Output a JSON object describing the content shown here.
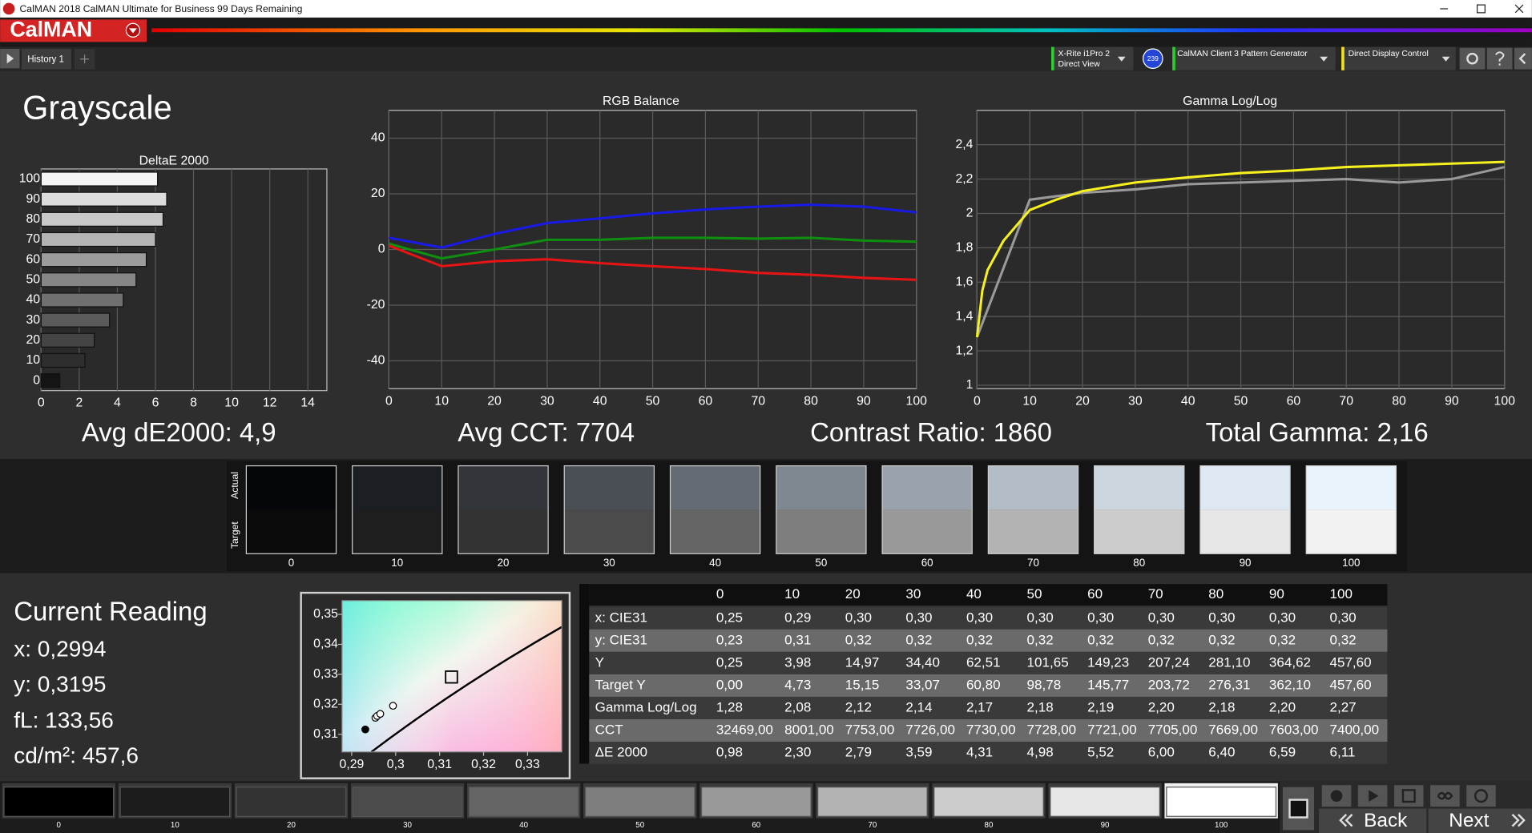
{
  "window": {
    "title": "CalMAN 2018 CalMAN Ultimate for Business 99 Days Remaining"
  },
  "toolbar": {
    "logo": "CalMAN",
    "tab": "History 1",
    "meter": [
      "X-Rite i1Pro 2",
      "Direct View"
    ],
    "meter_badge": "239",
    "source": "CalMAN Client 3 Pattern Generator",
    "display": "Direct Display Control"
  },
  "page_title": "Grayscale",
  "chart_data": [
    {
      "type": "bar",
      "orientation": "horizontal",
      "title": "DeltaE 2000",
      "categories": [
        "100",
        "90",
        "80",
        "70",
        "60",
        "50",
        "40",
        "30",
        "20",
        "10",
        "0"
      ],
      "values": [
        6.11,
        6.59,
        6.4,
        6.0,
        5.52,
        4.98,
        4.31,
        3.59,
        2.79,
        2.3,
        0.98
      ],
      "colors": [
        "#f4f4f4",
        "#dcdcdc",
        "#c8c8c8",
        "#b4b4b4",
        "#9c9c9c",
        "#868686",
        "#707070",
        "#5a5a5a",
        "#444444",
        "#2e2e2e",
        "#141414"
      ],
      "xlim": [
        0,
        15
      ],
      "xticks": [
        0,
        2,
        4,
        6,
        8,
        10,
        12,
        14
      ],
      "grid": true
    },
    {
      "type": "line",
      "title": "RGB Balance",
      "x": [
        0,
        10,
        20,
        30,
        40,
        50,
        60,
        70,
        80,
        90,
        100
      ],
      "series": [
        {
          "color": "#1a1ae6",
          "values": [
            4.2,
            0.7,
            5.6,
            9.5,
            11.2,
            13,
            14.4,
            15.4,
            16.1,
            15.4,
            13.3
          ]
        },
        {
          "color": "#0f8f0f",
          "values": [
            2.1,
            -3.2,
            0,
            3.5,
            3.5,
            4.2,
            4.2,
            3.9,
            4.2,
            3.2,
            2.8
          ]
        },
        {
          "color": "#e61414",
          "values": [
            1.4,
            -6,
            -4.2,
            -3.5,
            -4.9,
            -6,
            -7,
            -8.4,
            -9.1,
            -10.2,
            -10.9
          ]
        }
      ],
      "xlim": [
        0,
        100
      ],
      "xticks": [
        0,
        10,
        20,
        30,
        40,
        50,
        60,
        70,
        80,
        90,
        100
      ],
      "ylim": [
        -50,
        50
      ],
      "yticks": [
        40,
        20,
        0,
        -20,
        -40
      ],
      "grid": true
    },
    {
      "type": "line",
      "title": "Gamma Log/Log",
      "series": [
        {
          "color": "#9a9a9a",
          "x": [
            0,
            10,
            20,
            30,
            40,
            50,
            60,
            70,
            80,
            90,
            100
          ],
          "values": [
            1.28,
            2.08,
            2.12,
            2.14,
            2.17,
            2.18,
            2.19,
            2.2,
            2.18,
            2.2,
            2.27
          ]
        },
        {
          "color": "#f5f01e",
          "x": [
            0,
            1,
            2,
            5,
            10,
            15,
            20,
            30,
            40,
            50,
            60,
            70,
            80,
            90,
            100
          ],
          "values": [
            1.28,
            1.55,
            1.67,
            1.84,
            2.02,
            2.08,
            2.13,
            2.18,
            2.21,
            2.235,
            2.25,
            2.27,
            2.28,
            2.29,
            2.3
          ]
        }
      ],
      "xlim": [
        0,
        100
      ],
      "xticks": [
        0,
        10,
        20,
        30,
        40,
        50,
        60,
        70,
        80,
        90,
        100
      ],
      "ylim": [
        0.98,
        2.6
      ],
      "yticks": [
        {
          "value": 2.4,
          "label": "2,4"
        },
        {
          "value": 2.2,
          "label": "2,2"
        },
        2,
        {
          "value": 1.8,
          "label": "1,8"
        },
        {
          "value": 1.6,
          "label": "1,6"
        },
        {
          "value": 1.4,
          "label": "1,4"
        },
        {
          "value": 1.2,
          "label": "1,2"
        },
        1
      ],
      "grid": true
    },
    {
      "type": "scatter",
      "series": [
        {
          "color": "#000000",
          "marker": "dot",
          "x": [
            0.2931
          ],
          "values": [
            0.3116
          ]
        },
        {
          "color": "#ffffff",
          "marker": "ring",
          "x": [
            0.2954,
            0.2958,
            0.2965,
            0.2994
          ],
          "values": [
            0.3155,
            0.3161,
            0.3168,
            0.3195
          ]
        },
        {
          "color": "#000000",
          "marker": "square",
          "x": [
            0.3127
          ],
          "values": [
            0.3291
          ]
        }
      ],
      "xlim": [
        0.2878,
        0.3378
      ],
      "xticks": [
        {
          "value": 0.29,
          "label": "0,29"
        },
        {
          "value": 0.3,
          "label": "0,3"
        },
        {
          "value": 0.31,
          "label": "0,31"
        },
        {
          "value": 0.32,
          "label": "0,32"
        },
        {
          "value": 0.33,
          "label": "0,33"
        }
      ],
      "ylim": [
        0.3041,
        0.3546
      ],
      "yticks": [
        {
          "value": 0.35,
          "label": "0,35"
        },
        {
          "value": 0.34,
          "label": "0,34"
        },
        {
          "value": 0.33,
          "label": "0,33"
        },
        {
          "value": 0.32,
          "label": "0,32"
        },
        {
          "value": 0.31,
          "label": "0,31"
        }
      ],
      "grid": false
    }
  ],
  "summary": [
    "Avg dE2000: 4,9",
    "Avg CCT: 7704",
    "Contrast Ratio: 1860",
    "Total Gamma: 2,16"
  ],
  "swatches": {
    "row_labels": [
      "Actual",
      "Target"
    ],
    "items": [
      {
        "label": "0",
        "actual": "#05060a",
        "target": "#0a0a0a"
      },
      {
        "label": "10",
        "actual": "#1b1e22",
        "target": "#1e1e1e"
      },
      {
        "label": "20",
        "actual": "#32363b",
        "target": "#333333"
      },
      {
        "label": "30",
        "actual": "#4a4f55",
        "target": "#4b4b4b"
      },
      {
        "label": "40",
        "actual": "#646b73",
        "target": "#646464"
      },
      {
        "label": "50",
        "actual": "#7f8891",
        "target": "#7e7e7e"
      },
      {
        "label": "60",
        "actual": "#9aa3ad",
        "target": "#999999"
      },
      {
        "label": "70",
        "actual": "#b3bdc7",
        "target": "#b3b3b3"
      },
      {
        "label": "80",
        "actual": "#ccd6df",
        "target": "#cccccc"
      },
      {
        "label": "90",
        "actual": "#dde8f3",
        "target": "#e6e6e6"
      },
      {
        "label": "100",
        "actual": "#e8f3fc",
        "target": "#f2f2f2"
      }
    ]
  },
  "current_reading": {
    "title": "Current Reading",
    "lines": [
      "x: 0,2994",
      "y: 0,3195",
      "fL: 133,56",
      "cd/m²: 457,6"
    ]
  },
  "table": {
    "header": [
      "0",
      "10",
      "20",
      "30",
      "40",
      "50",
      "60",
      "70",
      "80",
      "90",
      "100"
    ],
    "rows": [
      {
        "label": "x: CIE31",
        "cells": [
          "0,25",
          "0,29",
          "0,30",
          "0,30",
          "0,30",
          "0,30",
          "0,30",
          "0,30",
          "0,30",
          "0,30",
          "0,30"
        ]
      },
      {
        "label": "y: CIE31",
        "cells": [
          "0,23",
          "0,31",
          "0,32",
          "0,32",
          "0,32",
          "0,32",
          "0,32",
          "0,32",
          "0,32",
          "0,32",
          "0,32"
        ]
      },
      {
        "label": "Y",
        "cells": [
          "0,25",
          "3,98",
          "14,97",
          "34,40",
          "62,51",
          "101,65",
          "149,23",
          "207,24",
          "281,10",
          "364,62",
          "457,60"
        ]
      },
      {
        "label": "Target Y",
        "cells": [
          "0,00",
          "4,73",
          "15,15",
          "33,07",
          "60,80",
          "98,78",
          "145,77",
          "203,72",
          "276,31",
          "362,10",
          "457,60"
        ]
      },
      {
        "label": "Gamma Log/Log",
        "cells": [
          "1,28",
          "2,08",
          "2,12",
          "2,14",
          "2,17",
          "2,18",
          "2,19",
          "2,20",
          "2,18",
          "2,20",
          "2,27"
        ]
      },
      {
        "label": "CCT",
        "cells": [
          "32469,00",
          "8001,00",
          "7753,00",
          "7726,00",
          "7730,00",
          "7728,00",
          "7721,00",
          "7705,00",
          "7669,00",
          "7603,00",
          "7400,00"
        ]
      },
      {
        "label": "ΔE 2000",
        "cells": [
          "0,98",
          "2,30",
          "2,79",
          "3,59",
          "4,31",
          "4,98",
          "5,52",
          "6,00",
          "6,40",
          "6,59",
          "6,11"
        ]
      }
    ]
  },
  "patches": [
    {
      "label": "0",
      "color": "#000000"
    },
    {
      "label": "10",
      "color": "#1c1c1c"
    },
    {
      "label": "20",
      "color": "#333333"
    },
    {
      "label": "30",
      "color": "#4b4b4b"
    },
    {
      "label": "40",
      "color": "#646464"
    },
    {
      "label": "50",
      "color": "#7e7e7e"
    },
    {
      "label": "60",
      "color": "#999999"
    },
    {
      "label": "70",
      "color": "#b3b3b3"
    },
    {
      "label": "80",
      "color": "#cccccc"
    },
    {
      "label": "90",
      "color": "#e6e6e6"
    },
    {
      "label": "100",
      "color": "#ffffff"
    }
  ],
  "nav": {
    "back": "Back",
    "next": "Next"
  }
}
